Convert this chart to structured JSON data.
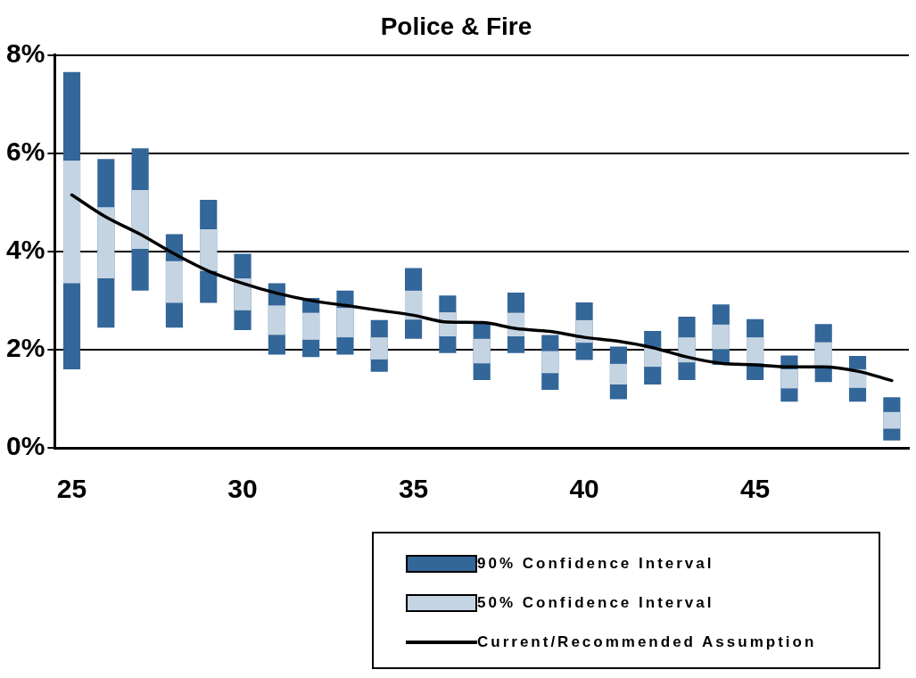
{
  "chart_data": {
    "type": "bar",
    "title": "Police & Fire",
    "categories": [
      "25",
      null,
      null,
      null,
      null,
      "30",
      null,
      null,
      null,
      null,
      "35",
      null,
      null,
      null,
      null,
      "40",
      null,
      null,
      null,
      null,
      "45",
      null,
      null,
      null,
      null
    ],
    "series": [
      {
        "name": "90% Confidence Interval",
        "color": "#336699",
        "base": [
          1.6,
          2.45,
          3.2,
          2.45,
          2.95,
          2.4,
          1.9,
          1.85,
          1.9,
          1.55,
          2.22,
          1.93,
          1.38,
          1.93,
          1.18,
          1.79,
          0.99,
          1.29,
          1.38,
          1.69,
          1.38,
          0.94,
          1.34,
          0.94,
          0.15
        ],
        "values": [
          6.05,
          3.43,
          2.9,
          1.9,
          2.1,
          1.55,
          1.45,
          1.2,
          1.3,
          1.05,
          1.44,
          1.17,
          1.18,
          1.23,
          1.12,
          1.17,
          1.07,
          1.09,
          1.29,
          1.23,
          1.24,
          0.94,
          1.18,
          0.93,
          0.88
        ]
      },
      {
        "name": "50% Confidence Interval",
        "color": "#c5d4e3",
        "base": [
          3.35,
          3.45,
          4.05,
          2.95,
          3.6,
          2.8,
          2.3,
          2.2,
          2.25,
          1.8,
          2.61,
          2.27,
          1.72,
          2.27,
          1.52,
          2.14,
          1.29,
          1.65,
          1.74,
          2.01,
          1.72,
          1.21,
          1.67,
          1.22,
          0.39
        ],
        "values": [
          2.5,
          1.45,
          1.2,
          0.85,
          0.85,
          0.65,
          0.6,
          0.55,
          0.6,
          0.45,
          0.59,
          0.49,
          0.5,
          0.48,
          0.45,
          0.46,
          0.42,
          0.39,
          0.51,
          0.5,
          0.53,
          0.39,
          0.48,
          0.38,
          0.34
        ]
      },
      {
        "name": "Current/Recommended Assumption",
        "type": "line",
        "color": "#000000",
        "values": [
          5.15,
          4.7,
          4.35,
          3.95,
          3.6,
          3.35,
          3.15,
          3.0,
          2.9,
          2.8,
          2.7,
          2.56,
          2.55,
          2.43,
          2.37,
          2.25,
          2.17,
          2.04,
          1.85,
          1.72,
          1.69,
          1.65,
          1.65,
          1.56,
          1.37
        ]
      }
    ],
    "ylim": [
      0,
      8
    ],
    "yticks": [
      {
        "value": 0,
        "label": "0%"
      },
      {
        "value": 2,
        "label": "2%"
      },
      {
        "value": 4,
        "label": "4%"
      },
      {
        "value": 6,
        "label": "6%"
      },
      {
        "value": 8,
        "label": "8%"
      }
    ],
    "grid": "y",
    "legend": "bottom right"
  }
}
